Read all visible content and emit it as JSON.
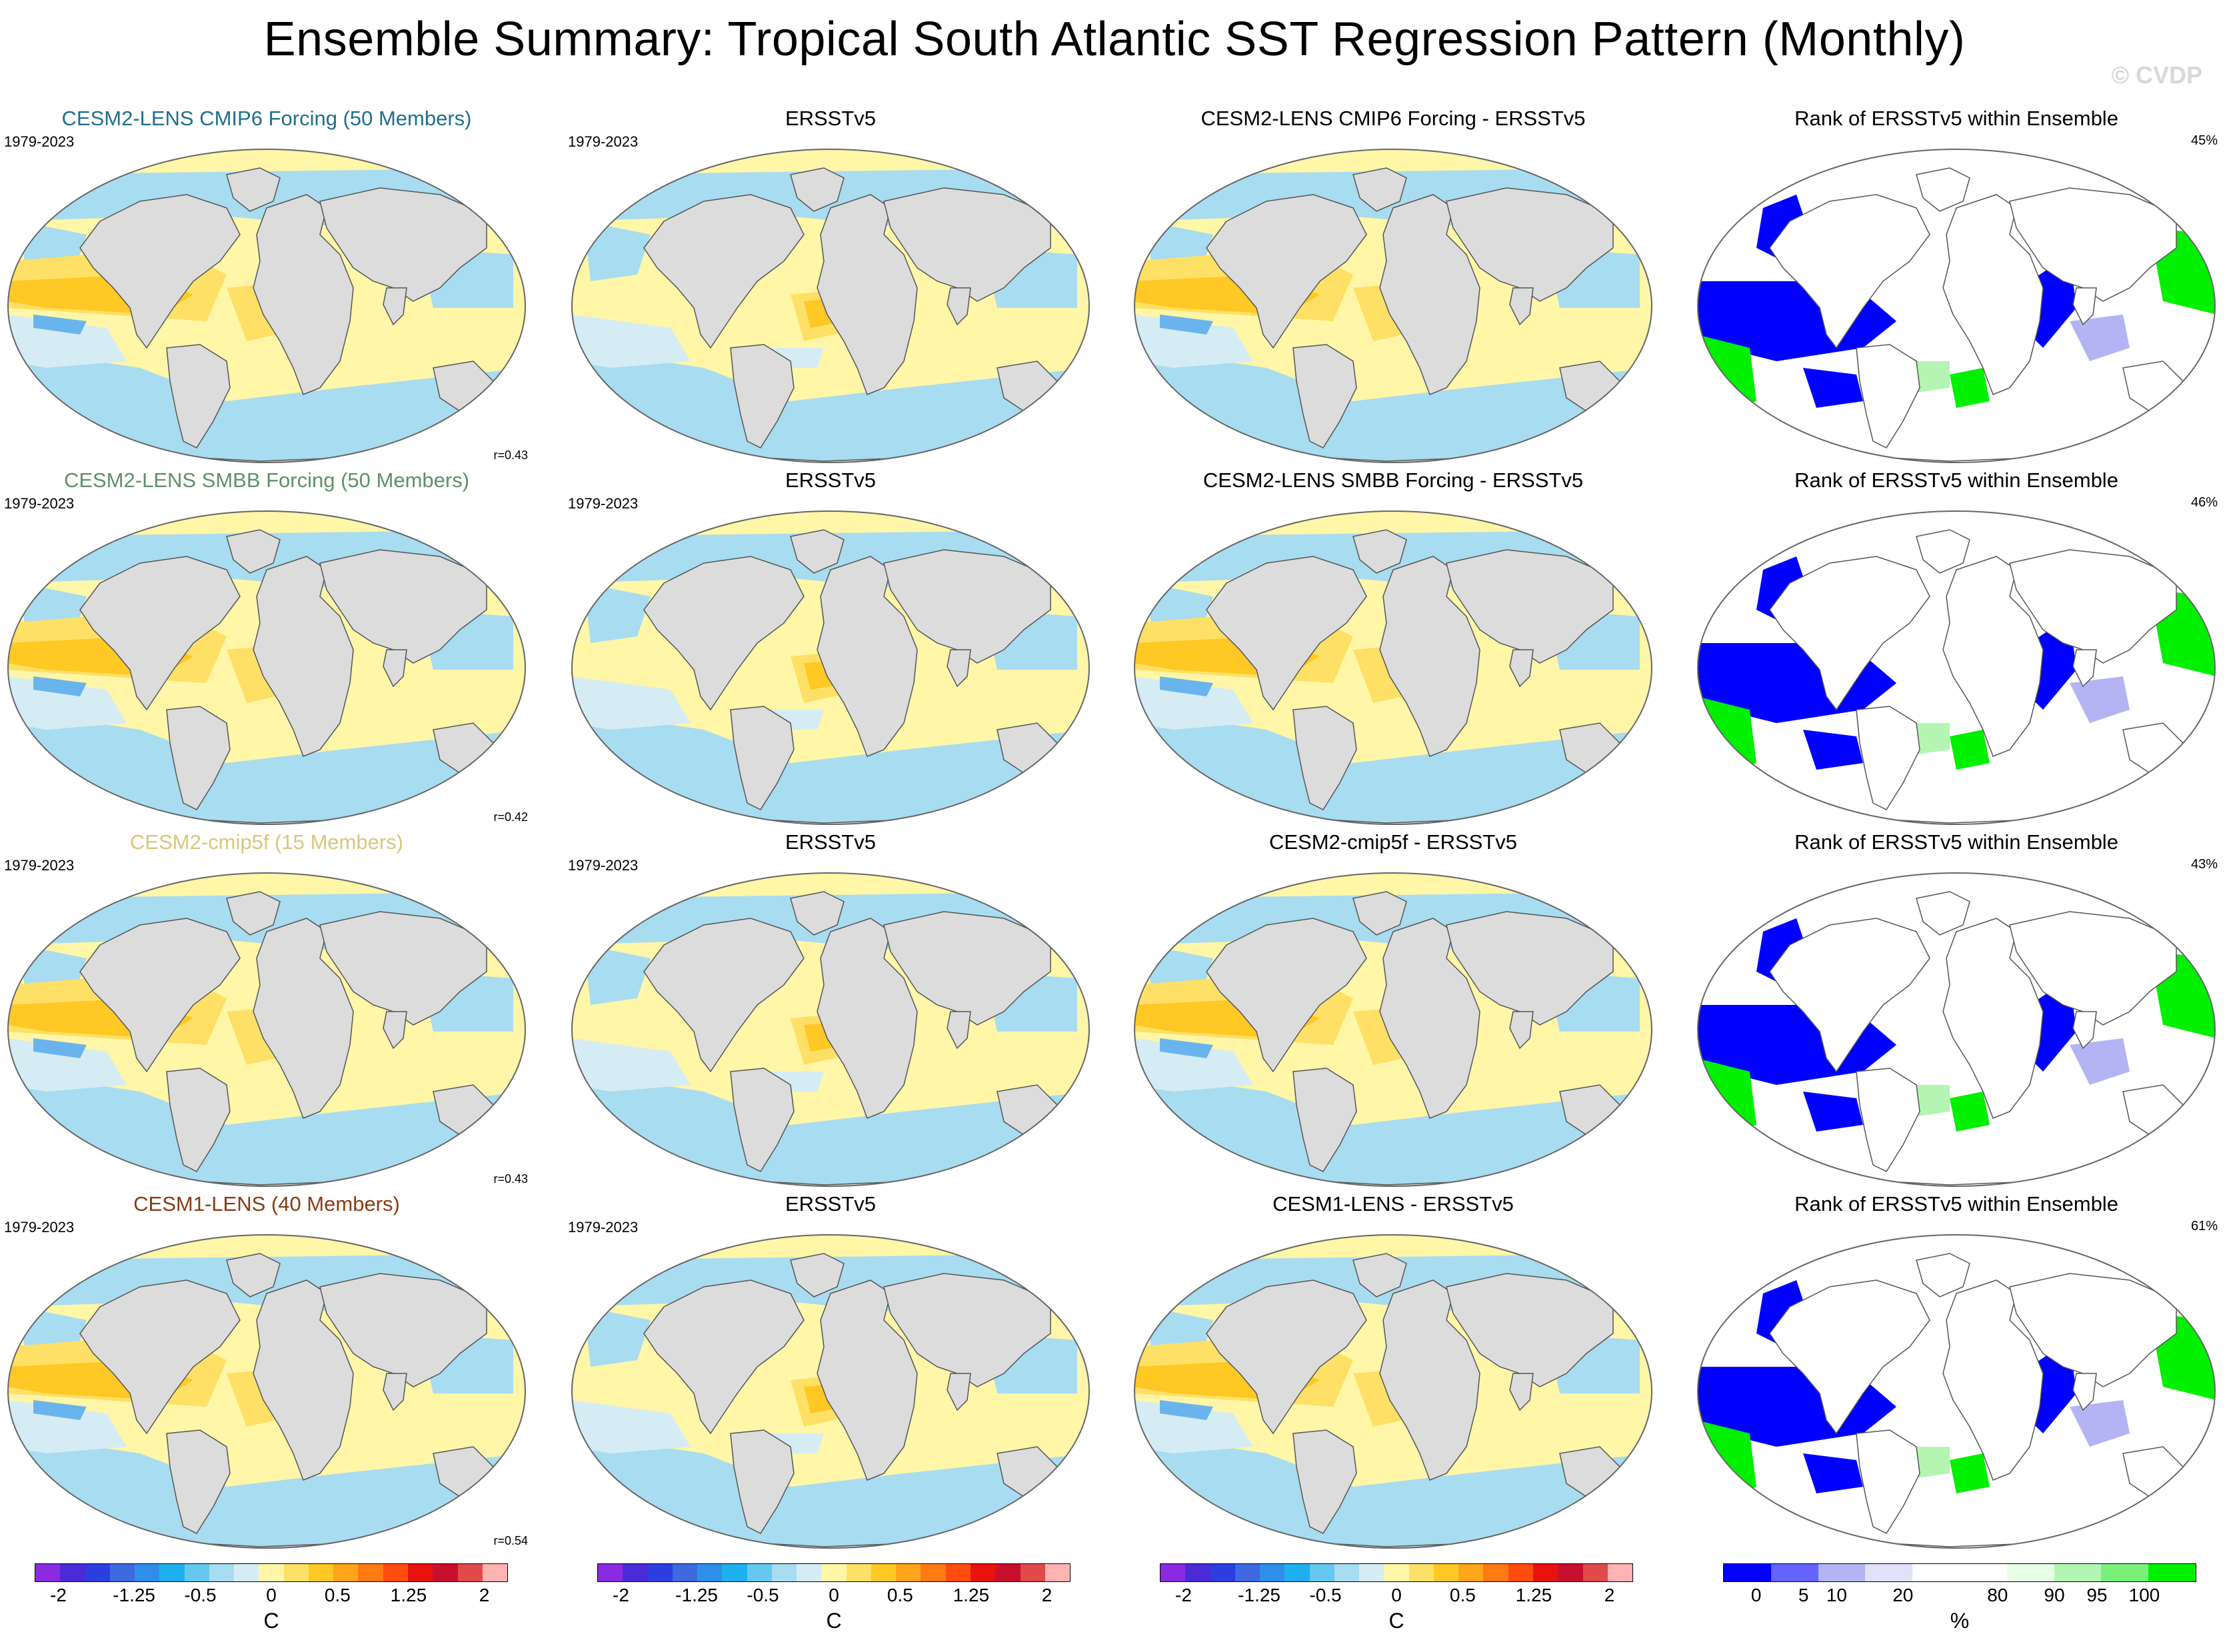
{
  "title": "Ensemble Summary: Tropical South Atlantic SST Regression Pattern (Monthly)",
  "watermark": "© CVDP",
  "rows": [
    {
      "model_title": "CESM2-LENS CMIP6 Forcing (50 Members)",
      "model_title_color": "#1f6f8b",
      "period": "1979-2023",
      "correlation": "r=0.43",
      "obs_title": "ERSSTv5",
      "obs_period": "1979-2023",
      "diff_title": "CESM2-LENS CMIP6 Forcing - ERSSTv5",
      "rank_title": "Rank of ERSSTv5 within Ensemble",
      "rank_pct": "45%"
    },
    {
      "model_title": "CESM2-LENS SMBB Forcing (50 Members)",
      "model_title_color": "#5f8f6a",
      "period": "1979-2023",
      "correlation": "r=0.42",
      "obs_title": "ERSSTv5",
      "obs_period": "1979-2023",
      "diff_title": "CESM2-LENS SMBB Forcing - ERSSTv5",
      "rank_title": "Rank of ERSSTv5 within Ensemble",
      "rank_pct": "46%"
    },
    {
      "model_title": "CESM2-cmip5f (15 Members)",
      "model_title_color": "#d8c77a",
      "period": "1979-2023",
      "correlation": "r=0.43",
      "obs_title": "ERSSTv5",
      "obs_period": "1979-2023",
      "diff_title": "CESM2-cmip5f - ERSSTv5",
      "rank_title": "Rank of ERSSTv5 within Ensemble",
      "rank_pct": "43%"
    },
    {
      "model_title": "CESM1-LENS (40 Members)",
      "model_title_color": "#8a3b12",
      "period": "1979-2023",
      "correlation": "r=0.54",
      "obs_title": "ERSSTv5",
      "obs_period": "1979-2023",
      "diff_title": "CESM1-LENS - ERSSTv5",
      "rank_title": "Rank of ERSSTv5 within Ensemble",
      "rank_pct": "61%"
    }
  ],
  "colorbars": {
    "sst": {
      "colors": [
        "#8a2be2",
        "#4b2bd8",
        "#2c3ee0",
        "#3f69e0",
        "#2f8fe8",
        "#1fb0f0",
        "#66c8f0",
        "#a8dcf0",
        "#d5ecf5",
        "#fff6a8",
        "#ffe066",
        "#ffc824",
        "#ffa51a",
        "#ff7a12",
        "#ff4d10",
        "#e8120e",
        "#c8102e",
        "#e04a4a",
        "#ffb3b3"
      ],
      "ticks": [
        "-2",
        "-1.25",
        "-0.5",
        "0",
        "0.5",
        "1.25",
        "2"
      ],
      "unit": "C"
    },
    "rank": {
      "colors": [
        "#0000ff",
        "#6464ff",
        "#b4b4f5",
        "#e1e1fa",
        "#ffffff",
        "#ffffff",
        "#e6ffe6",
        "#b4f5b4",
        "#7af07a",
        "#00f000"
      ],
      "ticks": [
        "0",
        "5",
        "10",
        "20",
        "80",
        "90",
        "95",
        "100"
      ],
      "unit": "%"
    }
  },
  "map_colors": {
    "land": "#dcdcdc",
    "land_stroke": "#555555",
    "cold": "#a8dcf0",
    "cool": "#d5ecf5",
    "neutral": "#fff6a8",
    "warm": "#ffe066",
    "hot": "#ffc824",
    "very_cold": "#6ab4ee",
    "rank_blue": "#0000ff",
    "rank_lblue": "#b4b4f5",
    "rank_green": "#00f000",
    "rank_lgreen": "#b4f5b4"
  }
}
